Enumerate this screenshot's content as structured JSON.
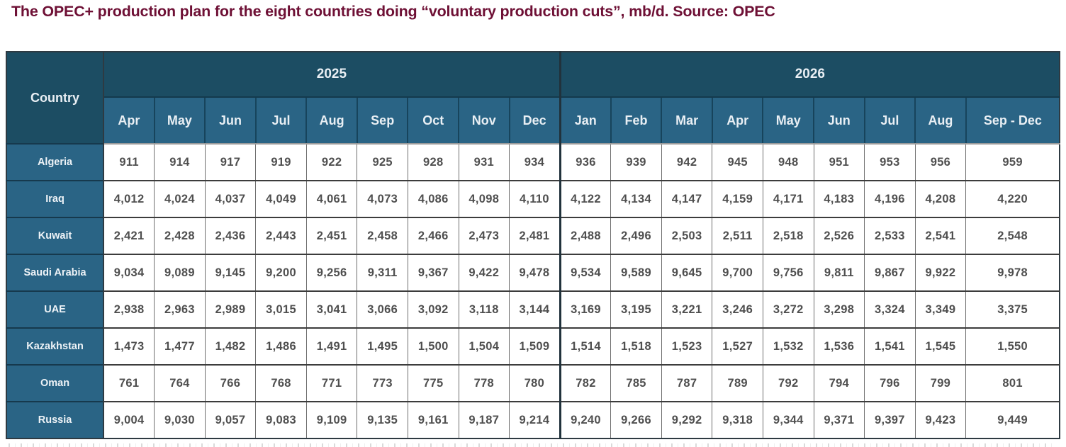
{
  "title": "The OPEC+ production plan for the eight countries doing “voluntary production cuts”, mb/d. Source: OPEC",
  "colors": {
    "title_maroon": "#6e1035",
    "header_teal_dark": "#1c4d63",
    "header_teal_mid": "#2a6485",
    "value_text": "#4f4f4f"
  },
  "chart_data": {
    "type": "table",
    "title": "The OPEC+ production plan for the eight countries doing “voluntary production cuts”, mb/d. Source: OPEC",
    "units": "mb/d (thousand-barrel precision shown)",
    "source": "OPEC",
    "country_column_header": "Country",
    "year_groups": [
      {
        "label": "2025",
        "months": [
          "Apr",
          "May",
          "Jun",
          "Jul",
          "Aug",
          "Sep",
          "Oct",
          "Nov",
          "Dec"
        ]
      },
      {
        "label": "2026",
        "months": [
          "Jan",
          "Feb",
          "Mar",
          "Apr",
          "May",
          "Jun",
          "Jul",
          "Aug",
          "Sep - Dec"
        ]
      }
    ],
    "rows": [
      {
        "country": "Algeria",
        "values": [
          "911",
          "914",
          "917",
          "919",
          "922",
          "925",
          "928",
          "931",
          "934",
          "936",
          "939",
          "942",
          "945",
          "948",
          "951",
          "953",
          "956",
          "959"
        ]
      },
      {
        "country": "Iraq",
        "values": [
          "4,012",
          "4,024",
          "4,037",
          "4,049",
          "4,061",
          "4,073",
          "4,086",
          "4,098",
          "4,110",
          "4,122",
          "4,134",
          "4,147",
          "4,159",
          "4,171",
          "4,183",
          "4,196",
          "4,208",
          "4,220"
        ]
      },
      {
        "country": "Kuwait",
        "values": [
          "2,421",
          "2,428",
          "2,436",
          "2,443",
          "2,451",
          "2,458",
          "2,466",
          "2,473",
          "2,481",
          "2,488",
          "2,496",
          "2,503",
          "2,511",
          "2,518",
          "2,526",
          "2,533",
          "2,541",
          "2,548"
        ]
      },
      {
        "country": "Saudi Arabia",
        "values": [
          "9,034",
          "9,089",
          "9,145",
          "9,200",
          "9,256",
          "9,311",
          "9,367",
          "9,422",
          "9,478",
          "9,534",
          "9,589",
          "9,645",
          "9,700",
          "9,756",
          "9,811",
          "9,867",
          "9,922",
          "9,978"
        ]
      },
      {
        "country": "UAE",
        "values": [
          "2,938",
          "2,963",
          "2,989",
          "3,015",
          "3,041",
          "3,066",
          "3,092",
          "3,118",
          "3,144",
          "3,169",
          "3,195",
          "3,221",
          "3,246",
          "3,272",
          "3,298",
          "3,324",
          "3,349",
          "3,375"
        ]
      },
      {
        "country": "Kazakhstan",
        "values": [
          "1,473",
          "1,477",
          "1,482",
          "1,486",
          "1,491",
          "1,495",
          "1,500",
          "1,504",
          "1,509",
          "1,514",
          "1,518",
          "1,523",
          "1,527",
          "1,532",
          "1,536",
          "1,541",
          "1,545",
          "1,550"
        ]
      },
      {
        "country": "Oman",
        "values": [
          "761",
          "764",
          "766",
          "768",
          "771",
          "773",
          "775",
          "778",
          "780",
          "782",
          "785",
          "787",
          "789",
          "792",
          "794",
          "796",
          "799",
          "801"
        ]
      },
      {
        "country": "Russia",
        "values": [
          "9,004",
          "9,030",
          "9,057",
          "9,083",
          "9,109",
          "9,135",
          "9,161",
          "9,187",
          "9,214",
          "9,240",
          "9,266",
          "9,292",
          "9,318",
          "9,344",
          "9,371",
          "9,397",
          "9,423",
          "9,449"
        ]
      }
    ]
  }
}
